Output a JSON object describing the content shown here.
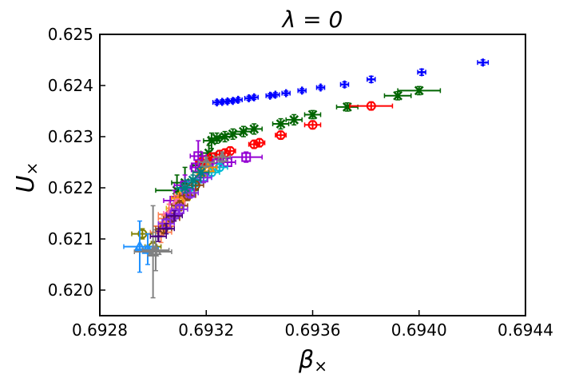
{
  "chart_data": {
    "type": "scatter",
    "title": "λ = 0",
    "xlabel": "β",
    "xlabel_sub": "×",
    "ylabel": "U",
    "ylabel_sub": "×",
    "xlim": [
      0.6928,
      0.6944
    ],
    "ylim": [
      0.6195,
      0.625
    ],
    "xticks": [
      0.6928,
      0.6932,
      0.6936,
      0.694,
      0.6944
    ],
    "xtick_labels": [
      "0.6928",
      "0.6932",
      "0.6936",
      "0.6940",
      "0.6944"
    ],
    "yticks": [
      0.62,
      0.621,
      0.622,
      0.623,
      0.624,
      0.625
    ],
    "ytick_labels": [
      "0.620",
      "0.621",
      "0.622",
      "0.623",
      "0.624",
      "0.625"
    ],
    "series": [
      {
        "name": "blue-plus",
        "color": "#0000ff",
        "marker": "plus",
        "points": [
          [
            0.69324,
            0.62367,
            1.5e-05,
            4e-05
          ],
          [
            0.69326,
            0.62368,
            1.5e-05,
            4e-05
          ],
          [
            0.69328,
            0.62369,
            1.5e-05,
            4e-05
          ],
          [
            0.6933,
            0.6237,
            1.5e-05,
            4e-05
          ],
          [
            0.69332,
            0.62372,
            1.5e-05,
            4e-05
          ],
          [
            0.69336,
            0.62375,
            1.5e-05,
            4e-05
          ],
          [
            0.69338,
            0.62377,
            1.5e-05,
            4e-05
          ],
          [
            0.69344,
            0.6238,
            1.5e-05,
            4e-05
          ],
          [
            0.69346,
            0.62382,
            1.5e-05,
            4e-05
          ],
          [
            0.6935,
            0.62385,
            1.5e-05,
            4e-05
          ],
          [
            0.69356,
            0.6239,
            1.5e-05,
            4e-05
          ],
          [
            0.69363,
            0.62396,
            1.5e-05,
            4e-05
          ],
          [
            0.69372,
            0.62402,
            1.5e-05,
            5e-05
          ],
          [
            0.69382,
            0.62412,
            1.5e-05,
            6e-05
          ],
          [
            0.69401,
            0.62426,
            1.5e-05,
            6e-05
          ],
          [
            0.69424,
            0.62445,
            2e-05,
            5e-05
          ]
        ]
      },
      {
        "name": "green-x",
        "color": "#006400",
        "marker": "x",
        "points": [
          [
            0.69318,
            0.62244,
            3e-05,
            0.0002
          ],
          [
            0.69321,
            0.62268,
            3e-05,
            0.00015
          ],
          [
            0.69322,
            0.62292,
            3e-05,
            0.00015
          ],
          [
            0.69324,
            0.62297,
            3e-05,
            0.0001
          ],
          [
            0.69327,
            0.623,
            3e-05,
            0.0001
          ],
          [
            0.6933,
            0.62305,
            3e-05,
            0.0001
          ],
          [
            0.69334,
            0.6231,
            3e-05,
            0.0001
          ],
          [
            0.69338,
            0.62315,
            3e-05,
            0.0001
          ],
          [
            0.69348,
            0.62325,
            3e-05,
            0.0001
          ],
          [
            0.69353,
            0.62333,
            3e-05,
            0.0001
          ],
          [
            0.6936,
            0.62343,
            3e-05,
            8e-05
          ],
          [
            0.69373,
            0.62358,
            4e-05,
            8e-05
          ],
          [
            0.69392,
            0.6238,
            5e-05,
            8e-05
          ],
          [
            0.694,
            0.6239,
            8e-05,
            8e-05
          ],
          [
            0.69309,
            0.62195,
            8e-05,
            0.0003
          ],
          [
            0.69312,
            0.6221,
            5e-05,
            0.0003
          ]
        ]
      },
      {
        "name": "red-circle",
        "color": "#ff0000",
        "marker": "circle",
        "points": [
          [
            0.69318,
            0.6225,
            2e-05,
            8e-05
          ],
          [
            0.6932,
            0.62255,
            2e-05,
            8e-05
          ],
          [
            0.69322,
            0.6226,
            2e-05,
            8e-05
          ],
          [
            0.69325,
            0.62265,
            2e-05,
            8e-05
          ],
          [
            0.69327,
            0.62268,
            2e-05,
            8e-05
          ],
          [
            0.69329,
            0.62272,
            2e-05,
            8e-05
          ],
          [
            0.69338,
            0.62285,
            2e-05,
            8e-05
          ],
          [
            0.6934,
            0.62288,
            2e-05,
            8e-05
          ],
          [
            0.69348,
            0.62303,
            2e-05,
            8e-05
          ],
          [
            0.6936,
            0.62323,
            3e-05,
            8e-05
          ],
          [
            0.69382,
            0.6236,
            8e-05,
            8e-05
          ]
        ]
      },
      {
        "name": "purple-square",
        "color": "#9400d3",
        "marker": "square",
        "points": [
          [
            0.69316,
            0.6224,
            2e-05,
            8e-05
          ],
          [
            0.69324,
            0.62248,
            2e-05,
            8e-05
          ],
          [
            0.69328,
            0.6225,
            3e-05,
            8e-05
          ],
          [
            0.69335,
            0.6226,
            6e-05,
            0.0001
          ],
          [
            0.69317,
            0.62262,
            3e-05,
            0.0003
          ],
          [
            0.69312,
            0.62205,
            4e-05,
            0.0002
          ],
          [
            0.69308,
            0.62175,
            4e-05,
            0.0002
          ]
        ]
      },
      {
        "name": "cyan-circle",
        "color": "#00bcd4",
        "marker": "circle",
        "points": [
          [
            0.69313,
            0.62195,
            3e-05,
            6e-05
          ],
          [
            0.69316,
            0.6221,
            3e-05,
            6e-05
          ],
          [
            0.69319,
            0.6222,
            3e-05,
            6e-05
          ],
          [
            0.69322,
            0.6223,
            3e-05,
            6e-05
          ],
          [
            0.69325,
            0.6224,
            3e-05,
            6e-05
          ]
        ]
      },
      {
        "name": "yellow-plus",
        "color": "#ccbb00",
        "marker": "plus",
        "points": [
          [
            0.69308,
            0.6216,
            3e-05,
            0.0001
          ],
          [
            0.69311,
            0.6218,
            3e-05,
            0.0001
          ],
          [
            0.69313,
            0.6219,
            3e-05,
            0.0001
          ]
        ]
      },
      {
        "name": "orange-triangle",
        "color": "#ff8c00",
        "marker": "triangle",
        "points": [
          [
            0.69318,
            0.6223,
            3e-05,
            8e-05
          ],
          [
            0.69321,
            0.6224,
            3e-05,
            8e-05
          ],
          [
            0.6931,
            0.6218,
            3e-05,
            0.0001
          ]
        ]
      },
      {
        "name": "salmon-diamond",
        "color": "#ff7f50",
        "marker": "diamond",
        "points": [
          [
            0.69304,
            0.62125,
            4e-05,
            0.0002
          ],
          [
            0.69306,
            0.62148,
            4e-05,
            0.0002
          ],
          [
            0.69303,
            0.62113,
            4e-05,
            0.0002
          ],
          [
            0.69306,
            0.6214,
            4e-05,
            0.0002
          ],
          [
            0.69312,
            0.62185,
            4e-05,
            0.0002
          ]
        ]
      },
      {
        "name": "pink-diamond",
        "color": "#ff69b4",
        "marker": "diamond",
        "points": [
          [
            0.69307,
            0.6215,
            3e-05,
            0.0001
          ],
          [
            0.69309,
            0.62168,
            3e-05,
            0.0001
          ]
        ]
      },
      {
        "name": "olive-circle",
        "color": "#808000",
        "marker": "circle",
        "points": [
          [
            0.69296,
            0.6211,
            4e-05,
            0.0001
          ],
          [
            0.693,
            0.62085,
            3e-05,
            0.0001
          ]
        ]
      },
      {
        "name": "dodger-triangle",
        "color": "#1e90ff",
        "marker": "triangle",
        "points": [
          [
            0.69295,
            0.62085,
            6e-05,
            0.0005
          ],
          [
            0.69298,
            0.6208,
            4e-05,
            0.0003
          ]
        ]
      },
      {
        "name": "gray-triangle",
        "color": "#808080",
        "marker": "triangle",
        "points": [
          [
            0.693,
            0.62075,
            7e-05,
            0.0009
          ],
          [
            0.69301,
            0.62078,
            5e-05,
            0.0004
          ],
          [
            0.6932,
            0.6225,
            3e-05,
            0.0001
          ],
          [
            0.69326,
            0.6226,
            3e-05,
            0.0001
          ]
        ]
      },
      {
        "name": "brown-circle",
        "color": "#8b4513",
        "marker": "circle",
        "points": [
          [
            0.69304,
            0.6212,
            3e-05,
            0.0001
          ],
          [
            0.69307,
            0.6214,
            3e-05,
            0.0001
          ],
          [
            0.6931,
            0.62165,
            3e-05,
            0.0001
          ],
          [
            0.69313,
            0.62185,
            3e-05,
            0.0001
          ],
          [
            0.69316,
            0.62205,
            3e-05,
            0.0001
          ]
        ]
      },
      {
        "name": "violet-square",
        "color": "#8a2be2",
        "marker": "square",
        "points": [
          [
            0.69305,
            0.6213,
            3e-05,
            0.0001
          ],
          [
            0.69308,
            0.62148,
            3e-05,
            0.0001
          ],
          [
            0.6931,
            0.62158,
            3e-05,
            0.0001
          ],
          [
            0.69314,
            0.6219,
            3e-05,
            0.0001
          ],
          [
            0.69319,
            0.6222,
            3e-05,
            0.0001
          ]
        ]
      },
      {
        "name": "teal-x",
        "color": "#008080",
        "marker": "x",
        "points": [
          [
            0.69312,
            0.622,
            3e-05,
            0.0001
          ],
          [
            0.69315,
            0.62215,
            3e-05,
            0.0001
          ],
          [
            0.69318,
            0.6223,
            3e-05,
            0.0001
          ]
        ]
      },
      {
        "name": "indigo-plus",
        "color": "#4b0082",
        "marker": "plus",
        "points": [
          [
            0.69302,
            0.62105,
            3e-05,
            0.0001
          ],
          [
            0.69305,
            0.6212,
            3e-05,
            0.0001
          ],
          [
            0.69308,
            0.62145,
            3e-05,
            0.0001
          ]
        ]
      }
    ]
  }
}
